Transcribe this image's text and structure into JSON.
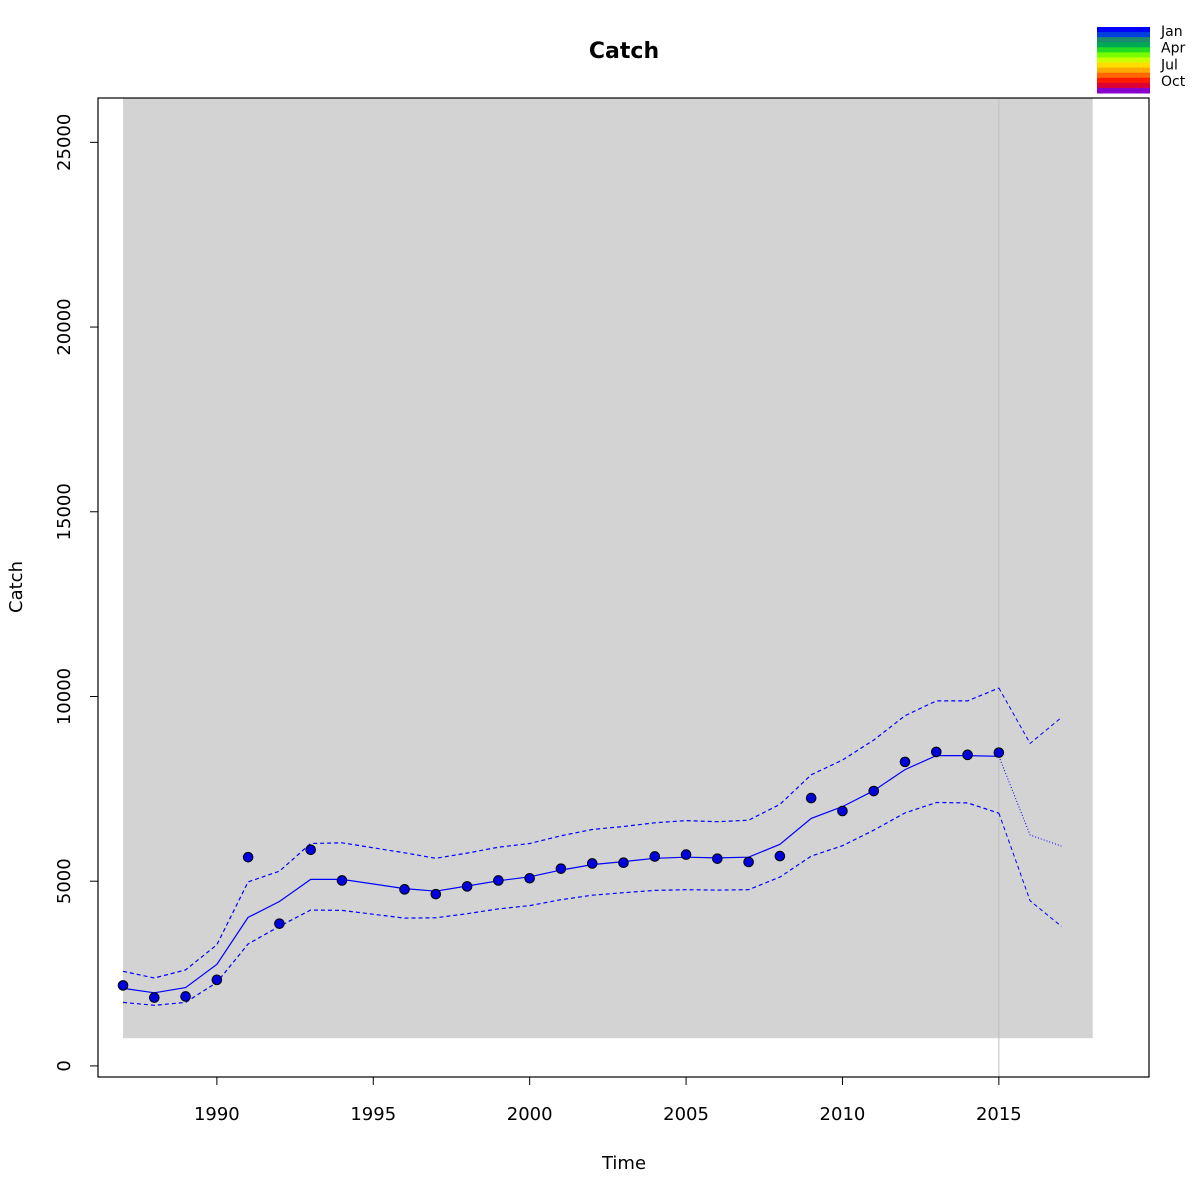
{
  "chart_data": {
    "type": "line",
    "title": "Catch",
    "xlabel": "Time",
    "ylabel": "Catch",
    "xlim": [
      1986.2,
      2019.8
    ],
    "ylim": [
      -300,
      26200
    ],
    "xticks": [
      1990,
      1995,
      2000,
      2005,
      2010,
      2015
    ],
    "yticks": [
      0,
      5000,
      10000,
      15000,
      20000,
      25000
    ],
    "shaded_region": {
      "x": [
        1987,
        2018
      ],
      "y": [
        750,
        26200
      ],
      "color": "#d3d3d3"
    },
    "vertical_line": {
      "x": 2015,
      "color": "#bebebe"
    },
    "colors": {
      "series": "#0000ff",
      "points_fill": "#0000dd",
      "points_stroke": "#000000"
    },
    "observed": {
      "x": [
        1987,
        1988,
        1989,
        1990,
        1991,
        1992,
        1993,
        1994,
        1996,
        1997,
        1998,
        1999,
        2000,
        2001,
        2002,
        2003,
        2004,
        2005,
        2006,
        2007,
        2008,
        2009,
        2010,
        2011,
        2012,
        2013,
        2014,
        2015
      ],
      "y": [
        2180,
        1850,
        1880,
        2330,
        5650,
        3850,
        5850,
        5020,
        4780,
        4650,
        4860,
        5020,
        5080,
        5340,
        5480,
        5500,
        5670,
        5720,
        5610,
        5520,
        5680,
        7250,
        6900,
        7440,
        8230,
        8500,
        8420,
        8480
      ]
    },
    "fit": {
      "x": [
        1987,
        1988,
        1989,
        1990,
        1991,
        1992,
        1993,
        1994,
        1996,
        1997,
        1998,
        1999,
        2000,
        2001,
        2002,
        2003,
        2004,
        2005,
        2006,
        2007,
        2008,
        2009,
        2010,
        2011,
        2012,
        2013,
        2014,
        2015
      ],
      "y": [
        2100,
        1980,
        2120,
        2750,
        4020,
        4450,
        5050,
        5050,
        4800,
        4730,
        4870,
        5010,
        5120,
        5300,
        5450,
        5530,
        5620,
        5650,
        5630,
        5650,
        6000,
        6700,
        7020,
        7450,
        8020,
        8400,
        8400,
        8380
      ]
    },
    "upper": {
      "x": [
        1987,
        1988,
        1989,
        1990,
        1991,
        1992,
        1993,
        1994,
        1996,
        1997,
        1998,
        1999,
        2000,
        2001,
        2002,
        2003,
        2004,
        2005,
        2006,
        2007,
        2008,
        2009,
        2010,
        2011,
        2012,
        2013,
        2014,
        2015
      ],
      "y": [
        2560,
        2380,
        2600,
        3280,
        4980,
        5270,
        6020,
        6040,
        5770,
        5620,
        5760,
        5920,
        6020,
        6230,
        6400,
        6480,
        6580,
        6640,
        6610,
        6650,
        7080,
        7880,
        8280,
        8820,
        9480,
        9880,
        9880,
        10230
      ]
    },
    "lower": {
      "x": [
        1987,
        1988,
        1989,
        1990,
        1991,
        1992,
        1993,
        1994,
        1996,
        1997,
        1998,
        1999,
        2000,
        2001,
        2002,
        2003,
        2004,
        2005,
        2006,
        2007,
        2008,
        2009,
        2010,
        2011,
        2012,
        2013,
        2014,
        2015
      ],
      "y": [
        1720,
        1640,
        1720,
        2260,
        3300,
        3780,
        4220,
        4210,
        4000,
        4010,
        4120,
        4250,
        4340,
        4500,
        4620,
        4690,
        4750,
        4770,
        4760,
        4770,
        5110,
        5680,
        5960,
        6380,
        6850,
        7130,
        7120,
        6840
      ]
    },
    "forecast": {
      "x": [
        2015,
        2016,
        2017
      ],
      "median": [
        8380,
        6250,
        5950
      ],
      "upper": [
        10230,
        8730,
        9430
      ],
      "lower": [
        6840,
        4470,
        3780
      ]
    },
    "legend": {
      "placement": "top-right",
      "labels": [
        "Jan",
        "Apr",
        "Jul",
        "Oct"
      ],
      "colors": [
        "#0000ff",
        "#0040dd",
        "#1a8a6a",
        "#00aa55",
        "#22dd22",
        "#77ff00",
        "#ccff00",
        "#ffdd00",
        "#ffaa00",
        "#ff6600",
        "#ff1a00",
        "#dd0033",
        "#8800cc"
      ]
    }
  }
}
